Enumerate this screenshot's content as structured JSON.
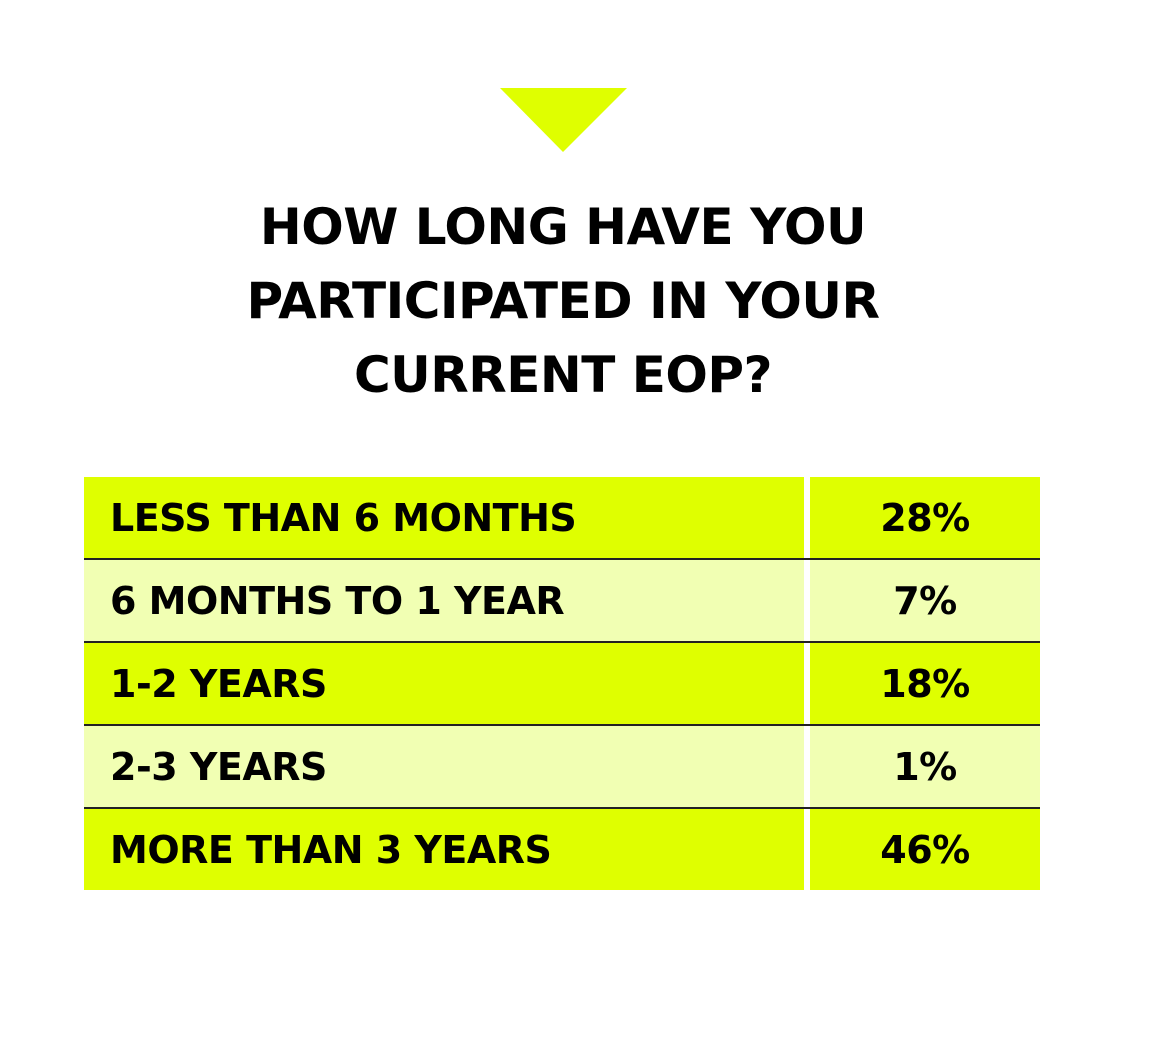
{
  "header": {
    "title_lines": [
      "HOW LONG HAVE YOU",
      "PARTICIPATED IN YOUR",
      "CURRENT EOP?"
    ]
  },
  "table": {
    "rows": [
      [
        "LESS THAN 6 MONTHS",
        "28%"
      ],
      [
        "6 MONTHS TO 1 YEAR",
        "7%"
      ],
      [
        "1-2 YEARS",
        "18%"
      ],
      [
        "2-3 YEARS",
        "1%"
      ],
      [
        "MORE THAN 3 YEARS",
        "46%"
      ]
    ]
  }
}
